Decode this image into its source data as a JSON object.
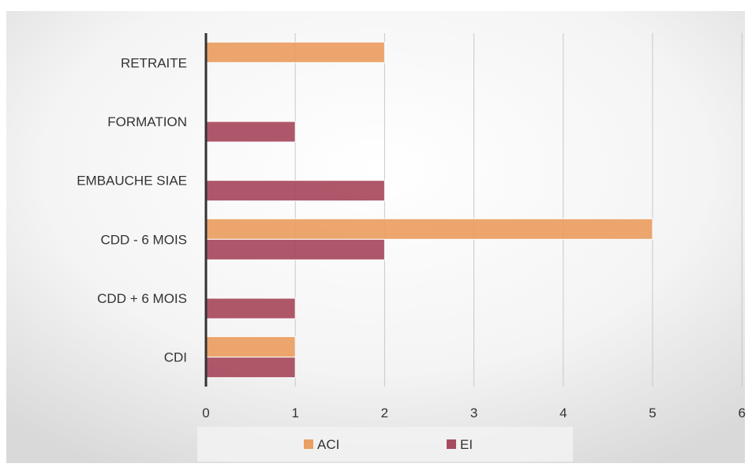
{
  "chart_data": {
    "type": "bar",
    "orientation": "horizontal",
    "categories": [
      "RETRAITE",
      "FORMATION",
      "EMBAUCHE SIAE",
      "CDD - 6 MOIS",
      "CDD + 6 MOIS",
      "CDI"
    ],
    "series": [
      {
        "name": "ACI",
        "values": [
          2,
          0,
          0,
          5,
          0,
          1
        ]
      },
      {
        "name": "EI",
        "values": [
          0,
          1,
          2,
          2,
          1,
          1
        ]
      }
    ],
    "xlim": [
      0,
      6
    ],
    "xticks": [
      "0",
      "1",
      "2",
      "3",
      "4",
      "5",
      "6"
    ],
    "grid": "vertical",
    "legend": "bottom",
    "colors": {
      "ACI": "#eb9f62",
      "EI": "#a84a5e"
    }
  }
}
